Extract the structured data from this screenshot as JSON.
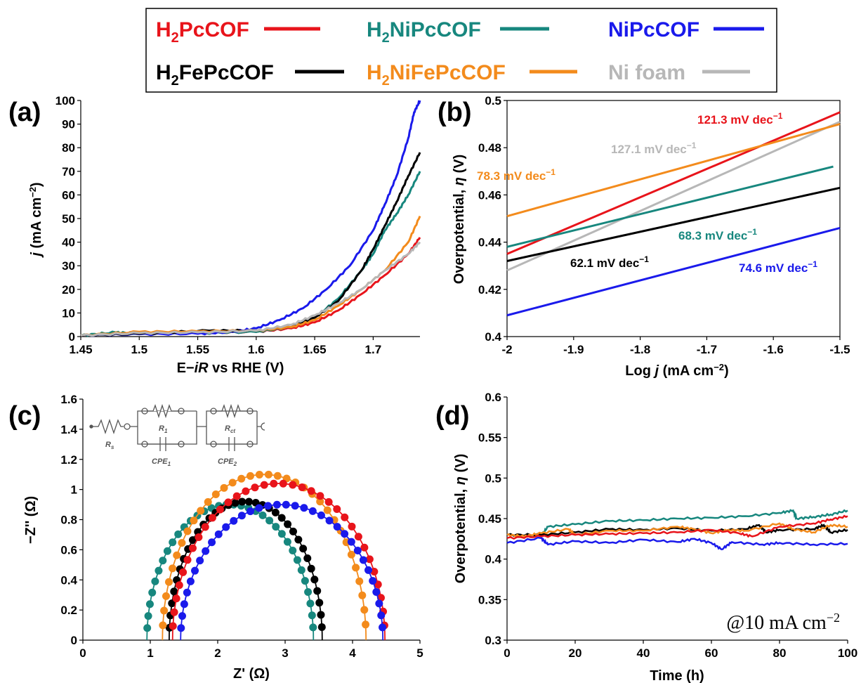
{
  "legend": {
    "items": [
      {
        "label": "H",
        "sub": "2",
        "rest": "PcCOF",
        "color": "#e8141b"
      },
      {
        "label": "H",
        "sub": "2",
        "rest": "NiPcCOF",
        "color": "#17877e"
      },
      {
        "label": "NiPcCOF",
        "sub": "",
        "rest": "",
        "color": "#1a1aeb"
      },
      {
        "label": "H",
        "sub": "2",
        "rest": "FePcCOF",
        "color": "#000000"
      },
      {
        "label": "H",
        "sub": "2",
        "rest": "NiFePcCOF",
        "color": "#f38b1c"
      },
      {
        "label": "Ni foam",
        "sub": "",
        "rest": "",
        "color": "#b7b7b7"
      }
    ]
  },
  "panels": {
    "a": {
      "tag": "(a)",
      "ylabel_italic": "j",
      "ylabel_rest": " (mA cm",
      "ylabel_sup": "−2",
      "ylabel_end": ")",
      "xlabel_pre": "E−",
      "xlabel_ital": "iR",
      "xlabel_post": " vs RHE (V)"
    },
    "b": {
      "tag": "(b)",
      "ylabel_pre": "Overpotential, ",
      "ylabel_ital": "η",
      "ylabel_post": " (V)",
      "xlabel_pre": "Log ",
      "xlabel_ital": "j",
      "xlabel_post": " (mA cm",
      "xlabel_sup": "−2",
      "xlabel_end": ")"
    },
    "c": {
      "tag": "(c)",
      "ylabel": "−Z'' (Ω)",
      "xlabel": "Z' (Ω)",
      "circuit": {
        "rs": "R",
        "rs_sub": "s",
        "r1": "R",
        "r1_sub": "1",
        "rct": "R",
        "rct_sub": "ct",
        "cpe1": "CPE",
        "cpe1_sub": "1",
        "cpe2": "CPE",
        "cpe2_sub": "2"
      }
    },
    "d": {
      "tag": "(d)",
      "ylabel_pre": "Overpotential, ",
      "ylabel_ital": "η",
      "ylabel_post": " (V)",
      "xlabel": "Time (h)",
      "annotation_pre": "@10 mA cm",
      "annotation_sup": "−2"
    }
  },
  "chart_data": [
    {
      "type": "line",
      "xlim": [
        1.45,
        1.74
      ],
      "ylim": [
        0,
        100
      ],
      "xticks": [
        "1.45",
        "1.5",
        "1.55",
        "1.6",
        "1.65",
        "1.7"
      ],
      "yticks": [
        "0",
        "10",
        "20",
        "30",
        "40",
        "50",
        "60",
        "70",
        "80",
        "90",
        "100"
      ],
      "series": [
        {
          "name": "H2PcCOF",
          "color": "#e8141b",
          "points": [
            [
              1.45,
              0.5
            ],
            [
              1.5,
              1.5
            ],
            [
              1.55,
              1.5
            ],
            [
              1.6,
              2
            ],
            [
              1.63,
              3.5
            ],
            [
              1.65,
              6
            ],
            [
              1.67,
              11
            ],
            [
              1.69,
              18
            ],
            [
              1.71,
              26
            ],
            [
              1.73,
              35
            ],
            [
              1.74,
              42
            ]
          ]
        },
        {
          "name": "H2NiPcCOF",
          "color": "#17877e",
          "points": [
            [
              1.45,
              0.5
            ],
            [
              1.48,
              1.8
            ],
            [
              1.5,
              1.2
            ],
            [
              1.55,
              1.5
            ],
            [
              1.6,
              2
            ],
            [
              1.63,
              4
            ],
            [
              1.65,
              8
            ],
            [
              1.67,
              16
            ],
            [
              1.69,
              28
            ],
            [
              1.7,
              35
            ],
            [
              1.71,
              45
            ],
            [
              1.72,
              52
            ],
            [
              1.73,
              60
            ],
            [
              1.74,
              70
            ]
          ]
        },
        {
          "name": "NiPcCOF",
          "color": "#1a1aeb",
          "points": [
            [
              1.45,
              0.5
            ],
            [
              1.5,
              1
            ],
            [
              1.55,
              1.2
            ],
            [
              1.58,
              2
            ],
            [
              1.6,
              3.5
            ],
            [
              1.62,
              7
            ],
            [
              1.64,
              12
            ],
            [
              1.66,
              20
            ],
            [
              1.68,
              30
            ],
            [
              1.7,
              45
            ],
            [
              1.71,
              56
            ],
            [
              1.72,
              68
            ],
            [
              1.73,
              84
            ],
            [
              1.735,
              95
            ],
            [
              1.74,
              100
            ]
          ]
        },
        {
          "name": "H2FePcCOF",
          "color": "#000000",
          "points": [
            [
              1.45,
              0.5
            ],
            [
              1.5,
              1.2
            ],
            [
              1.56,
              2.5
            ],
            [
              1.6,
              2.5
            ],
            [
              1.63,
              4
            ],
            [
              1.65,
              8
            ],
            [
              1.67,
              15
            ],
            [
              1.69,
              28
            ],
            [
              1.7,
              37
            ],
            [
              1.71,
              47
            ],
            [
              1.72,
              57
            ],
            [
              1.73,
              68
            ],
            [
              1.74,
              78
            ]
          ]
        },
        {
          "name": "H2NiFePcCOF",
          "color": "#f38b1c",
          "points": [
            [
              1.45,
              0.5
            ],
            [
              1.5,
              2
            ],
            [
              1.55,
              2.2
            ],
            [
              1.6,
              2.5
            ],
            [
              1.63,
              4
            ],
            [
              1.65,
              7
            ],
            [
              1.67,
              13
            ],
            [
              1.69,
              20
            ],
            [
              1.71,
              28
            ],
            [
              1.73,
              40
            ],
            [
              1.74,
              51
            ]
          ]
        },
        {
          "name": "Ni foam",
          "color": "#b7b7b7",
          "points": [
            [
              1.45,
              0.5
            ],
            [
              1.5,
              1.5
            ],
            [
              1.55,
              1.8
            ],
            [
              1.6,
              2.5
            ],
            [
              1.63,
              5
            ],
            [
              1.65,
              9
            ],
            [
              1.67,
              14
            ],
            [
              1.69,
              20
            ],
            [
              1.71,
              28
            ],
            [
              1.73,
              35
            ],
            [
              1.74,
              40
            ]
          ]
        }
      ]
    },
    {
      "type": "line",
      "xlim": [
        -2,
        -1.5
      ],
      "ylim": [
        0.4,
        0.5
      ],
      "xticks": [
        "-2",
        "-1.9",
        "-1.8",
        "-1.7",
        "-1.6",
        "-1.5"
      ],
      "yticks": [
        "0.4",
        "0.42",
        "0.44",
        "0.46",
        "0.48",
        "0.5"
      ],
      "series": [
        {
          "name": "H2PcCOF",
          "color": "#e8141b",
          "points": [
            [
              -2,
              0.435
            ],
            [
              -1.5,
              0.495
            ]
          ],
          "label": "121.3 mV dec",
          "label_sup": "−1"
        },
        {
          "name": "Ni foam",
          "color": "#b7b7b7",
          "points": [
            [
              -2,
              0.428
            ],
            [
              -1.5,
              0.491
            ]
          ],
          "label": "127.1 mV dec",
          "label_sup": "−1"
        },
        {
          "name": "H2NiFePcCOF",
          "color": "#f38b1c",
          "points": [
            [
              -2,
              0.451
            ],
            [
              -1.5,
              0.49
            ]
          ],
          "label": "78.3 mV dec",
          "label_sup": "−1"
        },
        {
          "name": "H2NiPcCOF",
          "color": "#17877e",
          "points": [
            [
              -2,
              0.438
            ],
            [
              -1.51,
              0.472
            ]
          ],
          "label": "68.3 mV dec",
          "label_sup": "−1"
        },
        {
          "name": "H2FePcCOF",
          "color": "#000000",
          "points": [
            [
              -2,
              0.432
            ],
            [
              -1.5,
              0.463
            ]
          ],
          "label": "62.1 mV dec",
          "label_sup": "−1"
        },
        {
          "name": "NiPcCOF",
          "color": "#1a1aeb",
          "points": [
            [
              -2,
              0.409
            ],
            [
              -1.5,
              0.446
            ]
          ],
          "label": "74.6 mV dec",
          "label_sup": "−1"
        }
      ]
    },
    {
      "type": "scatter",
      "xlim": [
        0,
        5
      ],
      "ylim": [
        0,
        1.6
      ],
      "xticks": [
        "0",
        "1",
        "2",
        "3",
        "4",
        "5"
      ],
      "yticks": [
        "0",
        "0.2",
        "0.4",
        "0.6",
        "0.8",
        "1",
        "1.2",
        "1.4",
        "1.6"
      ],
      "series": [
        {
          "name": "H2NiPcCOF",
          "color": "#17877e",
          "zstart": 0.95,
          "zend": 3.42,
          "peak": 0.9
        },
        {
          "name": "H2FePcCOF",
          "color": "#000000",
          "zstart": 1.28,
          "zend": 3.55,
          "peak": 0.92
        },
        {
          "name": "H2NiFePcCOF",
          "color": "#f38b1c",
          "zstart": 1.18,
          "zend": 4.2,
          "peak": 1.1
        },
        {
          "name": "H2PcCOF",
          "color": "#e8141b",
          "zstart": 1.33,
          "zend": 4.48,
          "peak": 1.04
        },
        {
          "name": "NiPcCOF",
          "color": "#1a1aeb",
          "zstart": 1.45,
          "zend": 4.45,
          "peak": 0.9
        }
      ]
    },
    {
      "type": "line",
      "xlim": [
        0,
        100
      ],
      "ylim": [
        0.3,
        0.6
      ],
      "xticks": [
        "0",
        "20",
        "40",
        "60",
        "80",
        "100"
      ],
      "yticks": [
        "0.3",
        "0.35",
        "0.4",
        "0.45",
        "0.5",
        "0.55",
        "0.6"
      ],
      "series": [
        {
          "name": "H2NiPcCOF",
          "color": "#17877e",
          "points": [
            [
              0,
              0.43
            ],
            [
              10,
              0.429
            ],
            [
              12,
              0.44
            ],
            [
              20,
              0.443
            ],
            [
              30,
              0.447
            ],
            [
              40,
              0.448
            ],
            [
              50,
              0.45
            ],
            [
              60,
              0.451
            ],
            [
              70,
              0.453
            ],
            [
              80,
              0.457
            ],
            [
              84,
              0.46
            ],
            [
              85,
              0.45
            ],
            [
              90,
              0.452
            ],
            [
              95,
              0.455
            ],
            [
              100,
              0.46
            ]
          ]
        },
        {
          "name": "H2FePcCOF",
          "color": "#000000",
          "points": [
            [
              0,
              0.43
            ],
            [
              10,
              0.43
            ],
            [
              20,
              0.433
            ],
            [
              30,
              0.437
            ],
            [
              40,
              0.436
            ],
            [
              50,
              0.438
            ],
            [
              60,
              0.435
            ],
            [
              70,
              0.437
            ],
            [
              74,
              0.442
            ],
            [
              76,
              0.433
            ],
            [
              80,
              0.436
            ],
            [
              90,
              0.437
            ],
            [
              93,
              0.442
            ],
            [
              95,
              0.433
            ],
            [
              100,
              0.436
            ]
          ]
        },
        {
          "name": "H2NiFePcCOF",
          "color": "#f38b1c",
          "points": [
            [
              0,
              0.43
            ],
            [
              5,
              0.428
            ],
            [
              10,
              0.432
            ],
            [
              18,
              0.437
            ],
            [
              20,
              0.43
            ],
            [
              30,
              0.435
            ],
            [
              40,
              0.435
            ],
            [
              50,
              0.44
            ],
            [
              55,
              0.437
            ],
            [
              60,
              0.432
            ],
            [
              65,
              0.436
            ],
            [
              70,
              0.435
            ],
            [
              80,
              0.444
            ],
            [
              84,
              0.437
            ],
            [
              90,
              0.433
            ],
            [
              95,
              0.442
            ],
            [
              100,
              0.44
            ]
          ]
        },
        {
          "name": "H2PcCOF",
          "color": "#e8141b",
          "points": [
            [
              0,
              0.426
            ],
            [
              10,
              0.428
            ],
            [
              20,
              0.43
            ],
            [
              30,
              0.431
            ],
            [
              40,
              0.432
            ],
            [
              50,
              0.433
            ],
            [
              60,
              0.436
            ],
            [
              68,
              0.432
            ],
            [
              72,
              0.428
            ],
            [
              80,
              0.44
            ],
            [
              90,
              0.444
            ],
            [
              95,
              0.449
            ],
            [
              100,
              0.453
            ]
          ]
        },
        {
          "name": "NiPcCOF",
          "color": "#1a1aeb",
          "points": [
            [
              0,
              0.42
            ],
            [
              10,
              0.426
            ],
            [
              12,
              0.418
            ],
            [
              20,
              0.422
            ],
            [
              30,
              0.42
            ],
            [
              40,
              0.424
            ],
            [
              50,
              0.421
            ],
            [
              55,
              0.425
            ],
            [
              60,
              0.42
            ],
            [
              63,
              0.412
            ],
            [
              66,
              0.421
            ],
            [
              75,
              0.418
            ],
            [
              80,
              0.42
            ],
            [
              90,
              0.418
            ],
            [
              100,
              0.419
            ]
          ]
        }
      ]
    }
  ]
}
